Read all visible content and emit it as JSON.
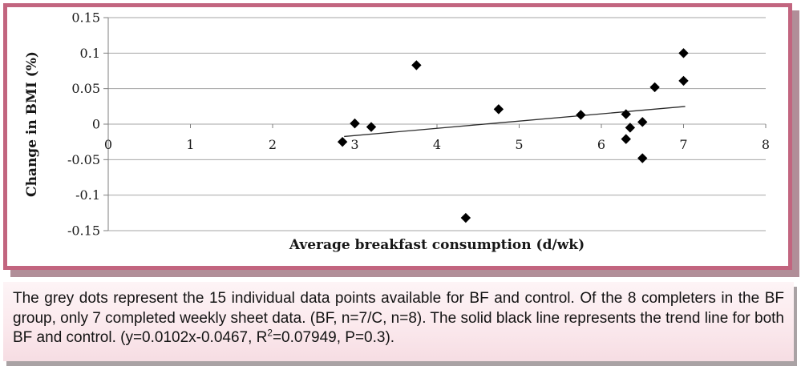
{
  "theme": {
    "frame_border": "#c2657f",
    "frame_shadow": "#b18e98",
    "caption_bg_top": "#fdf4f6",
    "caption_bg_mid": "#fbe9ed",
    "caption_bg_bottom": "#f6dde3",
    "caption_shadow": "#a9a2a4",
    "grid_color": "#a6a6a6",
    "axis_color": "#7f7f7f",
    "marker_color": "#000000",
    "trend_color": "#2b2b2b"
  },
  "chart_data": {
    "type": "scatter",
    "title": "",
    "xlabel": "Average breakfast consumption (d/wk)",
    "ylabel": "Change in BMI (%)",
    "xlim": [
      0,
      8
    ],
    "ylim": [
      -0.15,
      0.15
    ],
    "x_ticks": [
      0,
      1,
      2,
      3,
      4,
      5,
      6,
      7,
      8
    ],
    "y_ticks": [
      0.15,
      0.1,
      0.05,
      0,
      -0.05,
      -0.1,
      -0.15
    ],
    "y_tick_labels": [
      "0.15",
      "0.1",
      "0.05",
      "0",
      "-0.05",
      "-0.1",
      "-0.15"
    ],
    "grid": true,
    "legend": "none",
    "marker": "diamond",
    "points": [
      [
        2.85,
        -0.025
      ],
      [
        3.0,
        0.001
      ],
      [
        3.2,
        -0.004
      ],
      [
        3.75,
        0.083
      ],
      [
        4.35,
        -0.132
      ],
      [
        4.75,
        0.021
      ],
      [
        5.75,
        0.013
      ],
      [
        6.3,
        0.014
      ],
      [
        6.3,
        -0.021
      ],
      [
        6.35,
        -0.005
      ],
      [
        6.5,
        0.003
      ],
      [
        6.5,
        -0.048
      ],
      [
        6.65,
        0.052
      ],
      [
        7.0,
        0.1
      ],
      [
        7.0,
        0.061
      ]
    ],
    "trend_line": {
      "slope": 0.0102,
      "intercept": -0.0467,
      "x_start": 2.87,
      "x_end": 7.02,
      "equation": "y=0.0102x-0.0467",
      "r_squared": "0.07949",
      "p_value": "0.3"
    }
  },
  "caption": {
    "part1": "The grey dots represent the 15 individual data points available for BF and control. Of the 8 completers in the BF group, only 7 completed weekly sheet data. (BF, n=7/C, n=8). The solid black line represents the trend line for both BF and control. (y=0.0102x-0.0467, R",
    "superscript": "2",
    "part2": "=0.07949, P=0.3)."
  }
}
